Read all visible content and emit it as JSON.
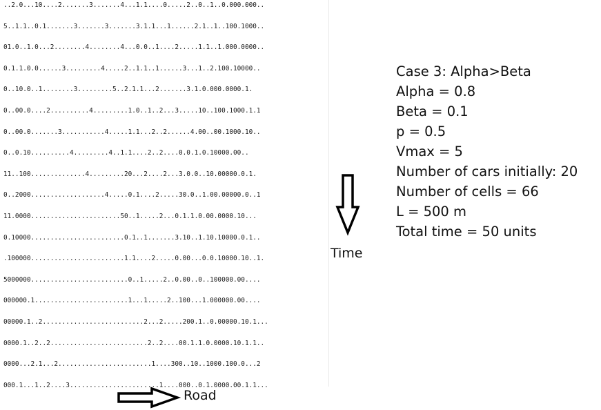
{
  "simulation_rows": [
    "..2.0...10....2.......3.......4...1.1....0.....2..0..1..0.000.000..",
    "5..1.1..0.1.......3.......3.......3.1.1...1......2.1..1..100.1000..",
    "01.0..1.0...2........4........4...0.0..1....2.....1.1..1.000.0000..",
    "0.1.1.0.0......3.........4.....2..1.1..1......3...1..2.100.10000..",
    "0..10.0..1........3.........5..2.1.1...2.......3.1.0.000.0000.1.",
    "0..00.0....2..........4.........1.0..1..2...3.....10..100.1000.1.1",
    "0..00.0.......3...........4.....1.1...2..2......4.00..00.1000.10..",
    "0..0.10..........4.........4..1.1....2..2....0.0.1.0.10000.00..",
    "11..100..............4.........20...2....2...3.0.0..10.00000.0.1.",
    "0..2000...................4.....0.1....2.....30.0..1.00.00000.0..1",
    "11.0000.......................50..1.....2...0.1.1.0.00.0000.10...",
    "0.10000........................0.1..1.......3.10..1.10.10000.0.1..",
    ".100000........................1.1....2.....0.00...0.0.10000.10..1.",
    "5000000.........................0..1.....2..0.00..0..100000.00....",
    "000000.1........................1...1.....2..100...1.000000.00....",
    "00000.1..2..........................2...2.....200.1..0.00000.10.1...",
    "0000.1..2..2.........................2..2....00.1.1.0.0000.10.1.1..",
    "0000...2.1...2........................1....300..10..1000.100.0...2",
    "000.1...1..2....3.......................1....000..0.1.0000.00.1.1..."
  ],
  "info": {
    "case": "Case 3: Alpha>Beta",
    "alpha": "Alpha = 0.8",
    "beta": "Beta = 0.1",
    "p": "p = 0.5",
    "vmax": "Vmax = 5",
    "cars": "Number of cars initially: 20",
    "cells": "Number of cells = 66",
    "length": "L = 500 m",
    "time": "Total time = 50 units"
  },
  "labels": {
    "time": "Time",
    "road": "Road"
  },
  "icons": {
    "time_arrow": "arrow-down-icon",
    "road_arrow": "arrow-right-icon"
  }
}
